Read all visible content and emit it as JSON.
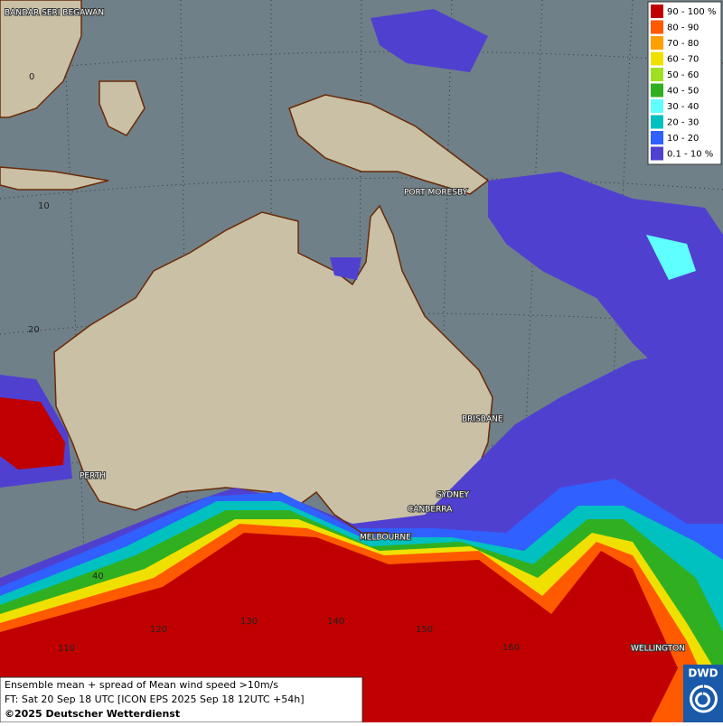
{
  "legend": [
    {
      "label": "90 - 100 %",
      "color": "#c00000"
    },
    {
      "label": "80 - 90",
      "color": "#ff5a00"
    },
    {
      "label": "70 - 80",
      "color": "#ffa000"
    },
    {
      "label": "60 - 70",
      "color": "#f0e000"
    },
    {
      "label": "50 - 60",
      "color": "#a0e020"
    },
    {
      "label": "40 - 50",
      "color": "#30b020"
    },
    {
      "label": "30 - 40",
      "color": "#60ffff"
    },
    {
      "label": "20 - 30",
      "color": "#00c0c0"
    },
    {
      "label": "10 - 20",
      "color": "#3060ff"
    },
    {
      "label": "0.1 - 10 %",
      "color": "#5040d0"
    }
  ],
  "cities": [
    "BANDAR SERI BEGAWAN",
    "PORT MORESBY",
    "BRISBANE",
    "SYDNEY",
    "CANBERRA",
    "MELBOURNE",
    "PERTH",
    "WELLINGTON"
  ],
  "grid_labels": [
    "0",
    "10",
    "20",
    "40",
    "110",
    "120",
    "130",
    "140",
    "150",
    "160"
  ],
  "footer": {
    "title": "Ensemble mean + spread of Mean wind speed >10m/s",
    "forecast": "FT: Sat 20 Sep 18 UTC [ICON EPS 2025 Sep 18 12UTC +54h]",
    "copyright": "©2025 Deutscher Wetterdienst"
  },
  "logo": "DWD"
}
